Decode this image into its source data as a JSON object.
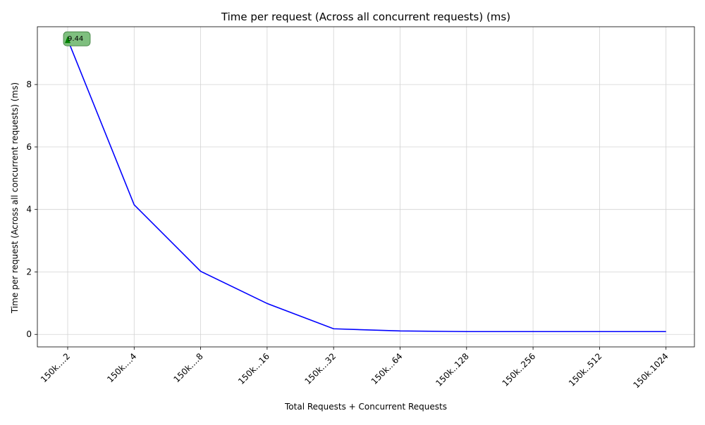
{
  "chart_data": {
    "type": "line",
    "title": "Time per request (Across all concurrent requests) (ms)",
    "xlabel": "Total Requests + Concurrent Requests",
    "ylabel": "Time per request (Across all concurrent requests) (ms)",
    "categories": [
      "150k....2",
      "150k....4",
      "150k....8",
      "150k...16",
      "150k...32",
      "150k...64",
      "150k..128",
      "150k..256",
      "150k..512",
      "150k.1024"
    ],
    "series": [
      {
        "color": "#0000ff",
        "values": [
          9.44,
          4.15,
          2.02,
          0.99,
          0.18,
          0.11,
          0.09,
          0.09,
          0.09,
          0.09
        ]
      }
    ],
    "ylim": [
      -0.4,
      9.85
    ],
    "yticks": [
      0,
      2,
      4,
      6,
      8
    ],
    "grid": true,
    "annotation": {
      "category": "150k....2",
      "value": 9.44,
      "text": "9.44",
      "marker_color": "#008000",
      "box_color": "#7fbf7f"
    }
  }
}
